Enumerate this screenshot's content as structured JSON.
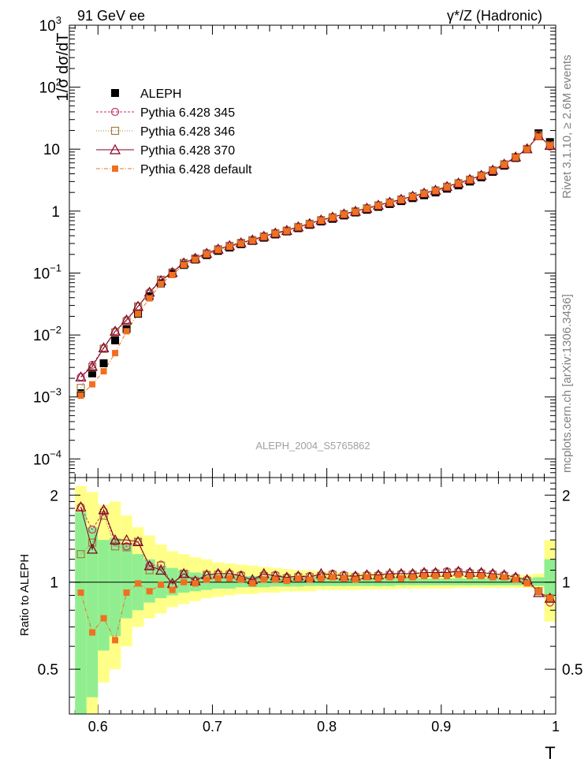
{
  "header": {
    "left_title": "91 GeV ee",
    "right_title": "γ*/Z (Hadronic)"
  },
  "side_labels": {
    "rivet": "Rivet 3.1.10, ≥ 2.6M events",
    "mcplots": "mcplots.cern.ch [arXiv:1306.3436]"
  },
  "watermark": "ALEPH_2004_S5765862",
  "colors": {
    "data": "#000000",
    "p345": "#c0306a",
    "p346": "#a08040",
    "p370": "#800020",
    "pdef": "#f07020",
    "band_green": "#90ee90",
    "band_yellow": "#ffff88"
  },
  "chart_data": [
    {
      "type": "line",
      "log_y": true,
      "ylabel": "1/σ dσ/dT",
      "xlabel": "",
      "xlim": [
        0.575,
        1.0
      ],
      "ylim": [
        5e-05,
        1000
      ],
      "y_ticks": [
        {
          "value": 0.0001,
          "base": "10",
          "exp": "−4"
        },
        {
          "value": 0.001,
          "base": "10",
          "exp": "−3"
        },
        {
          "value": 0.01,
          "base": "10",
          "exp": "−2"
        },
        {
          "value": 0.1,
          "base": "10",
          "exp": "−1"
        },
        {
          "value": 1,
          "base": "1",
          "exp": ""
        },
        {
          "value": 10,
          "base": "10",
          "exp": ""
        },
        {
          "value": 100,
          "base": "10",
          "exp": "2"
        },
        {
          "value": 1000,
          "base": "10",
          "exp": "3"
        }
      ],
      "legend": [
        {
          "key": "data",
          "label": "ALEPH"
        },
        {
          "key": "p345",
          "label": "Pythia 6.428 345"
        },
        {
          "key": "p346",
          "label": "Pythia 6.428 346"
        },
        {
          "key": "p370",
          "label": "Pythia 6.428 370"
        },
        {
          "key": "pdef",
          "label": "Pythia 6.428 default"
        }
      ],
      "x": [
        0.585,
        0.595,
        0.605,
        0.615,
        0.625,
        0.635,
        0.645,
        0.655,
        0.665,
        0.675,
        0.685,
        0.695,
        0.705,
        0.715,
        0.725,
        0.735,
        0.745,
        0.755,
        0.765,
        0.775,
        0.785,
        0.795,
        0.805,
        0.815,
        0.825,
        0.835,
        0.845,
        0.855,
        0.865,
        0.875,
        0.885,
        0.895,
        0.905,
        0.915,
        0.925,
        0.935,
        0.945,
        0.955,
        0.965,
        0.975,
        0.985,
        0.995
      ],
      "series": [
        {
          "key": "data",
          "name": "ALEPH",
          "values": [
            0.00115,
            0.0024,
            0.0035,
            0.0082,
            0.0125,
            0.022,
            0.042,
            0.068,
            0.098,
            0.135,
            0.165,
            0.195,
            0.228,
            0.258,
            0.292,
            0.33,
            0.372,
            0.42,
            0.47,
            0.53,
            0.6,
            0.68,
            0.75,
            0.85,
            0.95,
            1.05,
            1.17,
            1.3,
            1.45,
            1.62,
            1.8,
            2.0,
            2.3,
            2.6,
            3.0,
            3.5,
            4.3,
            5.4,
            7.2,
            10.0,
            18.0,
            13.0
          ]
        },
        {
          "key": "p345",
          "name": "Pythia 6.428 345",
          "values": [
            0.0021,
            0.0033,
            0.0062,
            0.0115,
            0.0175,
            0.029,
            0.049,
            0.078,
            0.104,
            0.148,
            0.175,
            0.21,
            0.245,
            0.278,
            0.31,
            0.345,
            0.395,
            0.445,
            0.49,
            0.56,
            0.63,
            0.72,
            0.8,
            0.9,
            1.0,
            1.12,
            1.25,
            1.39,
            1.55,
            1.74,
            1.95,
            2.18,
            2.5,
            2.85,
            3.25,
            3.8,
            4.6,
            5.75,
            7.5,
            10.2,
            16.8,
            11.0
          ]
        },
        {
          "key": "p346",
          "name": "Pythia 6.428 346",
          "values": [
            0.0014,
            0.003,
            0.006,
            0.011,
            0.0165,
            0.029,
            0.046,
            0.078,
            0.102,
            0.145,
            0.172,
            0.207,
            0.242,
            0.275,
            0.307,
            0.34,
            0.39,
            0.44,
            0.485,
            0.555,
            0.625,
            0.715,
            0.795,
            0.895,
            0.99,
            1.11,
            1.24,
            1.38,
            1.54,
            1.73,
            1.93,
            2.16,
            2.48,
            2.82,
            3.22,
            3.77,
            4.55,
            5.7,
            7.45,
            10.1,
            16.7,
            11.5
          ]
        },
        {
          "key": "p370",
          "name": "Pythia 6.428 370",
          "values": [
            0.0021,
            0.0031,
            0.0062,
            0.0115,
            0.0175,
            0.029,
            0.049,
            0.075,
            0.102,
            0.145,
            0.173,
            0.208,
            0.243,
            0.276,
            0.308,
            0.342,
            0.392,
            0.442,
            0.488,
            0.557,
            0.628,
            0.718,
            0.798,
            0.898,
            0.995,
            1.115,
            1.245,
            1.39,
            1.55,
            1.74,
            1.95,
            2.17,
            2.49,
            2.84,
            3.24,
            3.78,
            4.58,
            5.72,
            7.48,
            10.15,
            16.5,
            11.5
          ]
        },
        {
          "key": "pdef",
          "name": "Pythia 6.428 default",
          "values": [
            0.00105,
            0.0016,
            0.0026,
            0.0051,
            0.0115,
            0.022,
            0.039,
            0.067,
            0.093,
            0.135,
            0.165,
            0.2,
            0.234,
            0.265,
            0.298,
            0.333,
            0.382,
            0.43,
            0.475,
            0.545,
            0.615,
            0.7,
            0.78,
            0.875,
            0.97,
            1.09,
            1.21,
            1.35,
            1.5,
            1.69,
            1.89,
            2.11,
            2.42,
            2.76,
            3.15,
            3.68,
            4.46,
            5.6,
            7.3,
            9.9,
            16.0,
            11.5
          ]
        }
      ]
    },
    {
      "type": "line",
      "log_y": true,
      "ylabel": "Ratio to ALEPH",
      "xlabel": "T",
      "xlim": [
        0.575,
        1.0
      ],
      "ylim": [
        0.35,
        2.3
      ],
      "y_ticks": [
        0.5,
        1,
        2
      ],
      "x_ticks": [
        0.6,
        0.7,
        0.8,
        0.9,
        1
      ],
      "x": [
        0.585,
        0.595,
        0.605,
        0.615,
        0.625,
        0.635,
        0.645,
        0.655,
        0.665,
        0.675,
        0.685,
        0.695,
        0.705,
        0.715,
        0.725,
        0.735,
        0.745,
        0.755,
        0.765,
        0.775,
        0.785,
        0.795,
        0.805,
        0.815,
        0.825,
        0.835,
        0.845,
        0.855,
        0.865,
        0.875,
        0.885,
        0.895,
        0.905,
        0.915,
        0.925,
        0.935,
        0.945,
        0.955,
        0.965,
        0.975,
        0.985,
        0.995
      ],
      "band_green": [
        [
          0.35,
          1.75
        ],
        [
          0.4,
          1.55
        ],
        [
          0.58,
          1.4
        ],
        [
          0.65,
          1.42
        ],
        [
          0.75,
          1.35
        ],
        [
          0.8,
          1.25
        ],
        [
          0.85,
          1.2
        ],
        [
          0.88,
          1.14
        ],
        [
          0.9,
          1.12
        ],
        [
          0.92,
          1.1
        ],
        [
          0.93,
          1.08
        ],
        [
          0.94,
          1.07
        ],
        [
          0.95,
          1.06
        ],
        [
          0.95,
          1.06
        ],
        [
          0.96,
          1.05
        ],
        [
          0.96,
          1.05
        ],
        [
          0.96,
          1.05
        ],
        [
          0.965,
          1.045
        ],
        [
          0.965,
          1.045
        ],
        [
          0.965,
          1.04
        ],
        [
          0.97,
          1.04
        ],
        [
          0.97,
          1.04
        ],
        [
          0.97,
          1.035
        ],
        [
          0.97,
          1.035
        ],
        [
          0.97,
          1.035
        ],
        [
          0.97,
          1.035
        ],
        [
          0.97,
          1.035
        ],
        [
          0.97,
          1.035
        ],
        [
          0.975,
          1.03
        ],
        [
          0.975,
          1.03
        ],
        [
          0.975,
          1.03
        ],
        [
          0.975,
          1.03
        ],
        [
          0.975,
          1.03
        ],
        [
          0.975,
          1.03
        ],
        [
          0.975,
          1.03
        ],
        [
          0.975,
          1.03
        ],
        [
          0.975,
          1.03
        ],
        [
          0.975,
          1.03
        ],
        [
          0.975,
          1.03
        ],
        [
          0.975,
          1.03
        ],
        [
          0.97,
          1.04
        ],
        [
          0.9,
          1.2
        ]
      ],
      "band_yellow": [
        [
          0.35,
          2.15
        ],
        [
          0.35,
          2.05
        ],
        [
          0.45,
          1.85
        ],
        [
          0.5,
          1.9
        ],
        [
          0.6,
          1.7
        ],
        [
          0.7,
          1.55
        ],
        [
          0.75,
          1.45
        ],
        [
          0.78,
          1.35
        ],
        [
          0.82,
          1.28
        ],
        [
          0.84,
          1.25
        ],
        [
          0.86,
          1.22
        ],
        [
          0.88,
          1.2
        ],
        [
          0.89,
          1.17
        ],
        [
          0.9,
          1.16
        ],
        [
          0.91,
          1.15
        ],
        [
          0.91,
          1.14
        ],
        [
          0.92,
          1.13
        ],
        [
          0.92,
          1.12
        ],
        [
          0.93,
          1.11
        ],
        [
          0.93,
          1.1
        ],
        [
          0.93,
          1.1
        ],
        [
          0.94,
          1.09
        ],
        [
          0.94,
          1.09
        ],
        [
          0.94,
          1.08
        ],
        [
          0.94,
          1.08
        ],
        [
          0.945,
          1.075
        ],
        [
          0.945,
          1.075
        ],
        [
          0.945,
          1.07
        ],
        [
          0.95,
          1.07
        ],
        [
          0.95,
          1.07
        ],
        [
          0.95,
          1.065
        ],
        [
          0.95,
          1.065
        ],
        [
          0.95,
          1.065
        ],
        [
          0.955,
          1.06
        ],
        [
          0.955,
          1.06
        ],
        [
          0.955,
          1.06
        ],
        [
          0.955,
          1.06
        ],
        [
          0.955,
          1.06
        ],
        [
          0.955,
          1.06
        ],
        [
          0.955,
          1.06
        ],
        [
          0.95,
          1.07
        ],
        [
          0.73,
          1.4
        ]
      ],
      "series": [
        {
          "key": "p345",
          "name": "Pythia 6.428 345",
          "values": [
            1.82,
            1.52,
            1.76,
            1.38,
            1.33,
            1.38,
            1.14,
            1.15,
            0.98,
            1.07,
            1.01,
            1.06,
            1.07,
            1.07,
            1.06,
            1.01,
            1.06,
            1.06,
            1.04,
            1.05,
            1.05,
            1.06,
            1.07,
            1.06,
            1.05,
            1.06,
            1.06,
            1.06,
            1.07,
            1.07,
            1.08,
            1.08,
            1.09,
            1.09,
            1.08,
            1.08,
            1.07,
            1.06,
            1.04,
            1.02,
            0.93,
            0.85
          ]
        },
        {
          "key": "p346",
          "name": "Pythia 6.428 346",
          "values": [
            1.25,
            1.37,
            1.7,
            1.33,
            1.32,
            1.38,
            1.1,
            1.14,
            0.98,
            1.07,
            1.01,
            1.06,
            1.06,
            1.06,
            1.05,
            1.0,
            1.05,
            1.05,
            1.03,
            1.04,
            1.04,
            1.05,
            1.06,
            1.05,
            1.04,
            1.05,
            1.05,
            1.06,
            1.06,
            1.06,
            1.07,
            1.07,
            1.08,
            1.08,
            1.07,
            1.07,
            1.06,
            1.05,
            1.03,
            1.01,
            0.93,
            0.88
          ]
        },
        {
          "key": "p370",
          "name": "Pythia 6.428 370",
          "values": [
            1.82,
            1.3,
            1.78,
            1.4,
            1.4,
            1.38,
            1.14,
            1.1,
            0.99,
            1.07,
            1.01,
            1.06,
            1.07,
            1.07,
            1.05,
            1.02,
            1.07,
            1.05,
            1.04,
            1.05,
            1.04,
            1.07,
            1.06,
            1.05,
            1.05,
            1.06,
            1.06,
            1.07,
            1.07,
            1.07,
            1.08,
            1.08,
            1.08,
            1.09,
            1.08,
            1.08,
            1.07,
            1.06,
            1.04,
            1.02,
            0.92,
            0.88
          ]
        },
        {
          "key": "pdef",
          "name": "Pythia 6.428 default",
          "values": [
            0.92,
            0.67,
            0.75,
            0.63,
            0.92,
            0.99,
            0.93,
            0.98,
            0.94,
            1.0,
            0.99,
            1.02,
            1.03,
            1.03,
            1.02,
            0.99,
            1.02,
            1.02,
            1.01,
            1.03,
            1.02,
            1.03,
            1.04,
            1.03,
            1.02,
            1.04,
            1.03,
            1.04,
            1.03,
            1.04,
            1.05,
            1.05,
            1.05,
            1.06,
            1.05,
            1.05,
            1.04,
            1.04,
            1.02,
            0.99,
            0.93,
            0.88
          ]
        }
      ]
    }
  ]
}
